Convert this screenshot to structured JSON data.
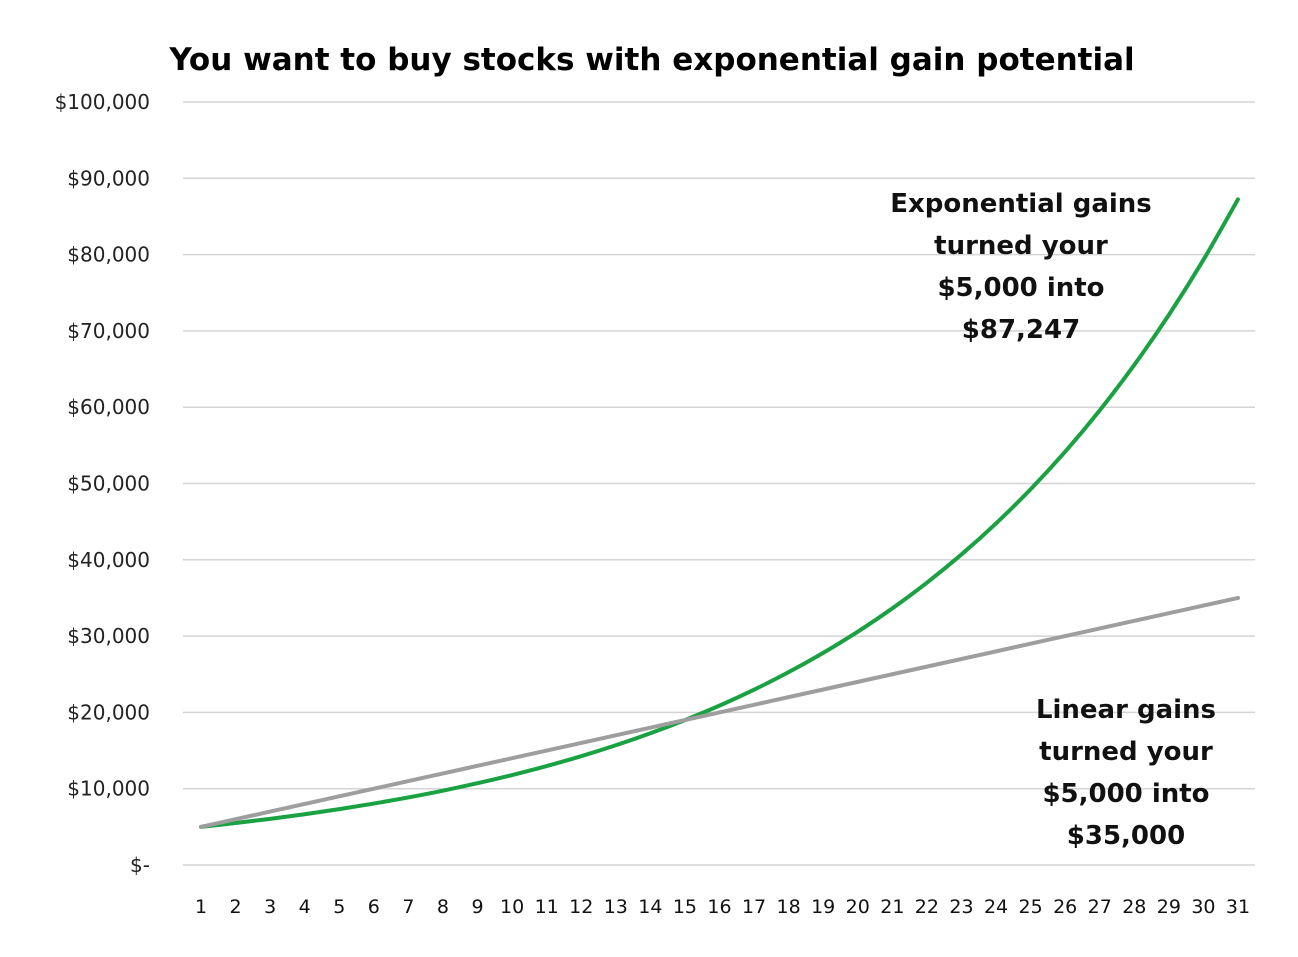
{
  "chart_data": {
    "type": "line",
    "title": "You want to buy stocks with exponential gain potential",
    "xlabel": "",
    "ylabel": "",
    "x": [
      1,
      2,
      3,
      4,
      5,
      6,
      7,
      8,
      9,
      10,
      11,
      12,
      13,
      14,
      15,
      16,
      17,
      18,
      19,
      20,
      21,
      22,
      23,
      24,
      25,
      26,
      27,
      28,
      29,
      30,
      31
    ],
    "x_tick_labels": [
      "1",
      "2",
      "3",
      "4",
      "5",
      "6",
      "7",
      "8",
      "9",
      "10",
      "11",
      "12",
      "13",
      "14",
      "15",
      "16",
      "17",
      "18",
      "19",
      "20",
      "21",
      "22",
      "23",
      "24",
      "25",
      "26",
      "27",
      "28",
      "29",
      "30",
      "31"
    ],
    "y_tick_labels": [
      "$-",
      "$10,000",
      "$20,000",
      "$30,000",
      "$40,000",
      "$50,000",
      "$60,000",
      "$70,000",
      "$80,000",
      "$90,000",
      "$100,000"
    ],
    "ylim": [
      0,
      100000
    ],
    "grid": true,
    "legend": "none",
    "series": [
      {
        "color": "#1aa142",
        "values": [
          5000,
          5500,
          6050,
          6655,
          7321,
          8053,
          8858,
          9744,
          10718,
          11790,
          12969,
          14266,
          15692,
          17261,
          18987,
          20886,
          22975,
          25272,
          27800,
          30580,
          33637,
          37001,
          40701,
          44771,
          49248,
          54173,
          59590,
          65549,
          72104,
          79315,
          87247
        ]
      },
      {
        "color": "#9e9e9e",
        "values": [
          5000,
          6000,
          7000,
          8000,
          9000,
          10000,
          11000,
          12000,
          13000,
          14000,
          15000,
          16000,
          17000,
          18000,
          19000,
          20000,
          21000,
          22000,
          23000,
          24000,
          25000,
          26000,
          27000,
          28000,
          29000,
          30000,
          31000,
          32000,
          33000,
          34000,
          35000
        ]
      }
    ],
    "annotations": [
      {
        "id": "exponential",
        "lines": [
          "Exponential gains",
          "turned your",
          "$5,000 into",
          "$87,247"
        ]
      },
      {
        "id": "linear",
        "lines": [
          "Linear gains",
          "turned your",
          "$5,000 into",
          "$35,000"
        ]
      }
    ]
  }
}
